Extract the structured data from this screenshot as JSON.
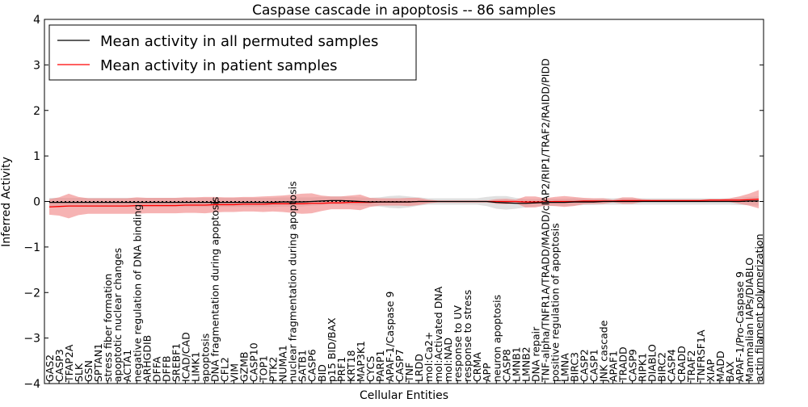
{
  "chart_data": {
    "type": "line",
    "title": "Caspase cascade in apoptosis -- 86 samples",
    "xlabel": "Cellular Entities",
    "ylabel": "Inferred Activity",
    "ylim": [
      -4,
      4
    ],
    "yticks": [
      -4,
      -3,
      -2,
      -1,
      0,
      1,
      2,
      3,
      4
    ],
    "grid": false,
    "legend_position": "top-left",
    "colors": {
      "permuted": "#000000",
      "patient": "#ff0000",
      "patient_band": "#f08080",
      "permuted_band": "#bbbbbb"
    },
    "categories": [
      "GAS2",
      "CASP3",
      "TFAP2A",
      "SLK",
      "GSN",
      "SPTAN1",
      "stress fiber formation",
      "apoptotic nuclear changes",
      "ACTA1",
      "negative regulation of DNA binding",
      "ARHGDIB",
      "DFFA",
      "DFFB",
      "SREBF1",
      "ICAD/CAD",
      "LIMK1",
      "apoptosis",
      "DNA fragmentation during apoptosis",
      "CFL2",
      "VIM",
      "GZMB",
      "CASP10",
      "TOP1",
      "PTK2",
      "NUMA1",
      "nuclear fragmentation during apoptosis",
      "SATB1",
      "CASP6",
      "BID",
      "p15 BID/BAX",
      "PRF1",
      "KRT18",
      "MAP3K1",
      "CYCS",
      "PARP1",
      "APAF-1/Caspase 9",
      "CASP7",
      "TNF",
      "LRDD",
      "mol:Ca2+",
      "mol:Activated DNA",
      "mol:NAD",
      "response to UV",
      "response to stress",
      "CRMA",
      "APP",
      "neuron apoptosis",
      "CASP8",
      "LMNB1",
      "LMNB2",
      "DNA repair",
      "TNF-alpha/TNFR1A/TRADD/MADD/cIAP2/RIP1/TRAF2/RAIDD/PIDD",
      "positive regulation of apoptosis",
      "LMNA",
      "BIRC3",
      "CASP2",
      "CASP1",
      "JNK cascade",
      "APAF1",
      "TRADD",
      "CASP9",
      "RIPK1",
      "DIABLO",
      "BIRC2",
      "CASP4",
      "CRADD",
      "TRAF2",
      "TNFRSF1A",
      "XIAP",
      "MADD",
      "BAX",
      "APAF-1/Pro-Caspase 9",
      "Mammalian IAPs/DIABLO",
      "actin filament polymerization"
    ],
    "series": [
      {
        "name": "Mean activity in all permuted samples",
        "values": [
          -0.02,
          -0.02,
          -0.02,
          -0.02,
          -0.02,
          -0.02,
          -0.02,
          -0.02,
          -0.02,
          -0.02,
          -0.02,
          -0.02,
          -0.02,
          -0.02,
          -0.02,
          -0.02,
          -0.02,
          -0.02,
          -0.02,
          -0.02,
          -0.02,
          -0.02,
          -0.02,
          -0.02,
          -0.01,
          -0.01,
          -0.01,
          0,
          0.01,
          0.02,
          0.02,
          0.01,
          0,
          -0.01,
          -0.01,
          -0.01,
          -0.01,
          -0.01,
          0,
          0,
          0,
          0,
          0,
          0,
          0,
          0,
          -0.02,
          -0.03,
          -0.04,
          -0.04,
          -0.03,
          -0.02,
          -0.02,
          -0.02,
          -0.01,
          -0.01,
          -0.01,
          0,
          0,
          0,
          0,
          0,
          0,
          0,
          0,
          0,
          0,
          0,
          0,
          0,
          0,
          0,
          0.01,
          0.01
        ],
        "std": [
          0.1,
          0.1,
          0.1,
          0.1,
          0.1,
          0.1,
          0.1,
          0.1,
          0.1,
          0.1,
          0.1,
          0.1,
          0.1,
          0.1,
          0.1,
          0.1,
          0.1,
          0.1,
          0.1,
          0.1,
          0.1,
          0.1,
          0.1,
          0.1,
          0.1,
          0.1,
          0.1,
          0.09,
          0.09,
          0.09,
          0.09,
          0.09,
          0.09,
          0.09,
          0.1,
          0.13,
          0.14,
          0.12,
          0.09,
          0.07,
          0.07,
          0.07,
          0.07,
          0.07,
          0.07,
          0.1,
          0.14,
          0.15,
          0.12,
          0.09,
          0.08,
          0.08,
          0.08,
          0.08,
          0.08,
          0.07,
          0.07,
          0.07,
          0.07,
          0.07,
          0.07,
          0.07,
          0.07,
          0.07,
          0.07,
          0.07,
          0.07,
          0.07,
          0.07,
          0.07,
          0.07,
          0.08,
          0.09,
          0.1
        ]
      },
      {
        "name": "Mean activity in patient samples",
        "values": [
          -0.12,
          -0.11,
          -0.1,
          -0.1,
          -0.1,
          -0.1,
          -0.1,
          -0.1,
          -0.1,
          -0.09,
          -0.09,
          -0.09,
          -0.09,
          -0.09,
          -0.08,
          -0.08,
          -0.08,
          -0.07,
          -0.07,
          -0.07,
          -0.06,
          -0.06,
          -0.06,
          -0.05,
          -0.05,
          -0.05,
          -0.05,
          -0.04,
          -0.04,
          -0.03,
          -0.03,
          -0.02,
          -0.02,
          -0.02,
          -0.01,
          -0.01,
          -0.01,
          -0.01,
          0,
          0,
          0,
          0,
          0,
          0,
          0,
          0,
          0,
          0,
          0,
          -0.01,
          -0.01,
          -0.01,
          0,
          0,
          0,
          0.01,
          0.01,
          0.01,
          0.01,
          0.02,
          0.02,
          0.02,
          0.02,
          0.02,
          0.02,
          0.02,
          0.02,
          0.02,
          0.03,
          0.03,
          0.03,
          0.03,
          0.04,
          0.05
        ],
        "std": [
          0.17,
          0.2,
          0.27,
          0.2,
          0.17,
          0.17,
          0.17,
          0.17,
          0.17,
          0.18,
          0.17,
          0.17,
          0.17,
          0.17,
          0.17,
          0.17,
          0.18,
          0.17,
          0.16,
          0.16,
          0.16,
          0.16,
          0.17,
          0.17,
          0.18,
          0.2,
          0.22,
          0.22,
          0.17,
          0.14,
          0.14,
          0.15,
          0.17,
          0.1,
          0.08,
          0.08,
          0.08,
          0.09,
          0.08,
          0.04,
          0.02,
          0.02,
          0.02,
          0.02,
          0.02,
          0.02,
          0.05,
          0.06,
          0.04,
          0.12,
          0.12,
          0.08,
          0.1,
          0.12,
          0.1,
          0.07,
          0.06,
          0.06,
          0.03,
          0.07,
          0.07,
          0.03,
          0.02,
          0.02,
          0.02,
          0.02,
          0.02,
          0.02,
          0.02,
          0.02,
          0.04,
          0.08,
          0.13,
          0.2
        ]
      }
    ]
  }
}
